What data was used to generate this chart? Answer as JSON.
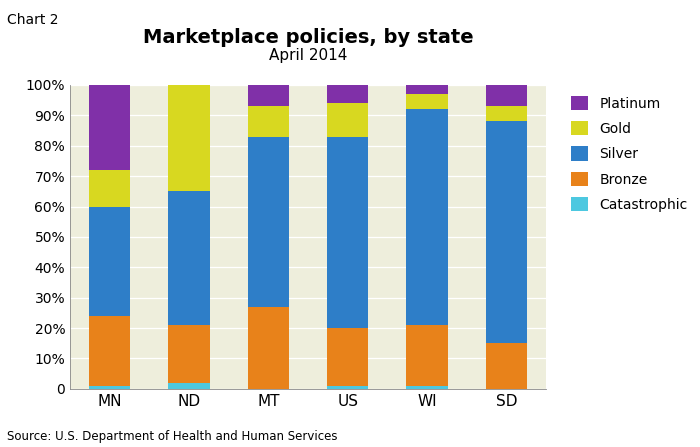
{
  "categories": [
    "MN",
    "ND",
    "MT",
    "US",
    "WI",
    "SD"
  ],
  "series": {
    "Catastrophic": [
      1.0,
      2.0,
      0.0,
      1.0,
      1.0,
      0.0
    ],
    "Bronze": [
      23.0,
      19.0,
      27.0,
      19.0,
      20.0,
      15.0
    ],
    "Silver": [
      36.0,
      44.0,
      56.0,
      63.0,
      71.0,
      73.0
    ],
    "Gold": [
      12.0,
      35.0,
      10.0,
      11.0,
      5.0,
      5.0
    ],
    "Platinum": [
      28.0,
      0.0,
      7.0,
      6.0,
      3.0,
      7.0
    ]
  },
  "colors": {
    "Catastrophic": "#4DC8E0",
    "Bronze": "#E8821A",
    "Silver": "#2E7EC8",
    "Gold": "#D8D820",
    "Platinum": "#8030A8"
  },
  "title": "Marketplace policies, by state",
  "subtitle": "April 2014",
  "chart_label": "Chart 2",
  "source": "Source: U.S. Department of Health and Human Services",
  "ylim": [
    0,
    100
  ],
  "yticks": [
    0,
    10,
    20,
    30,
    40,
    50,
    60,
    70,
    80,
    90,
    100
  ],
  "ytick_labels": [
    "0",
    "10%",
    "20%",
    "30%",
    "40%",
    "50%",
    "60%",
    "70%",
    "80%",
    "90%",
    "100%"
  ],
  "plot_bg_color": "#EEEEDC",
  "bar_width": 0.52,
  "legend_order": [
    "Platinum",
    "Gold",
    "Silver",
    "Bronze",
    "Catastrophic"
  ]
}
